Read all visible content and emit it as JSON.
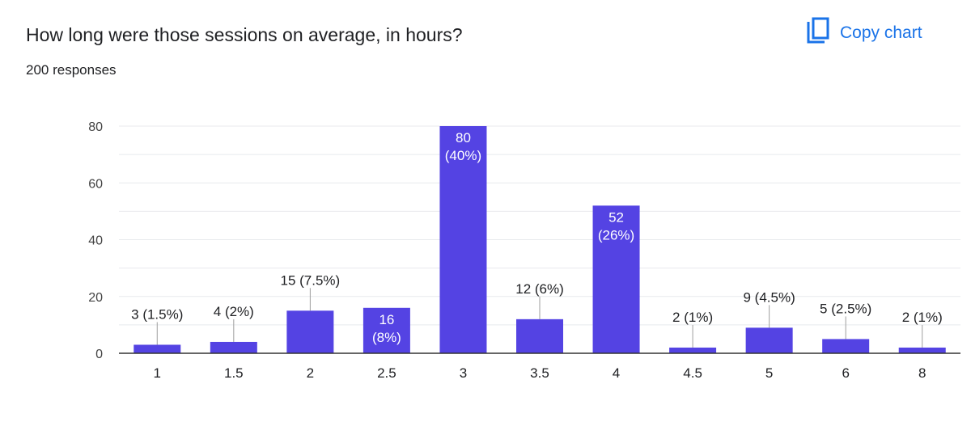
{
  "header": {
    "title": "How long were those sessions on average, in hours?",
    "responses": "200 responses",
    "copy_label": "Copy chart"
  },
  "colors": {
    "bar": "#5443e3",
    "accent": "#1a73e8",
    "grid": "#e8eaed",
    "axis": "#333333",
    "text": "#202124",
    "tick_text": "#444444"
  },
  "icons": {
    "copy": "copy-chart-icon"
  },
  "chart_data": {
    "type": "bar",
    "categories": [
      "1",
      "1.5",
      "2",
      "2.5",
      "3",
      "3.5",
      "4",
      "4.5",
      "5",
      "6",
      "8"
    ],
    "values": [
      3,
      4,
      15,
      16,
      80,
      12,
      52,
      2,
      9,
      5,
      2
    ],
    "labels": [
      "3 (1.5%)",
      "4 (2%)",
      "15 (7.5%)",
      "16\n(8%)",
      "80\n(40%)",
      "12 (6%)",
      "52\n(26%)",
      "2 (1%)",
      "9 (4.5%)",
      "5 (2.5%)",
      "2 (1%)"
    ],
    "ylim": [
      0,
      80
    ],
    "yticks": [
      0,
      20,
      40,
      60,
      80
    ],
    "grid": true,
    "legend": "none",
    "xlabel": "",
    "ylabel": ""
  }
}
